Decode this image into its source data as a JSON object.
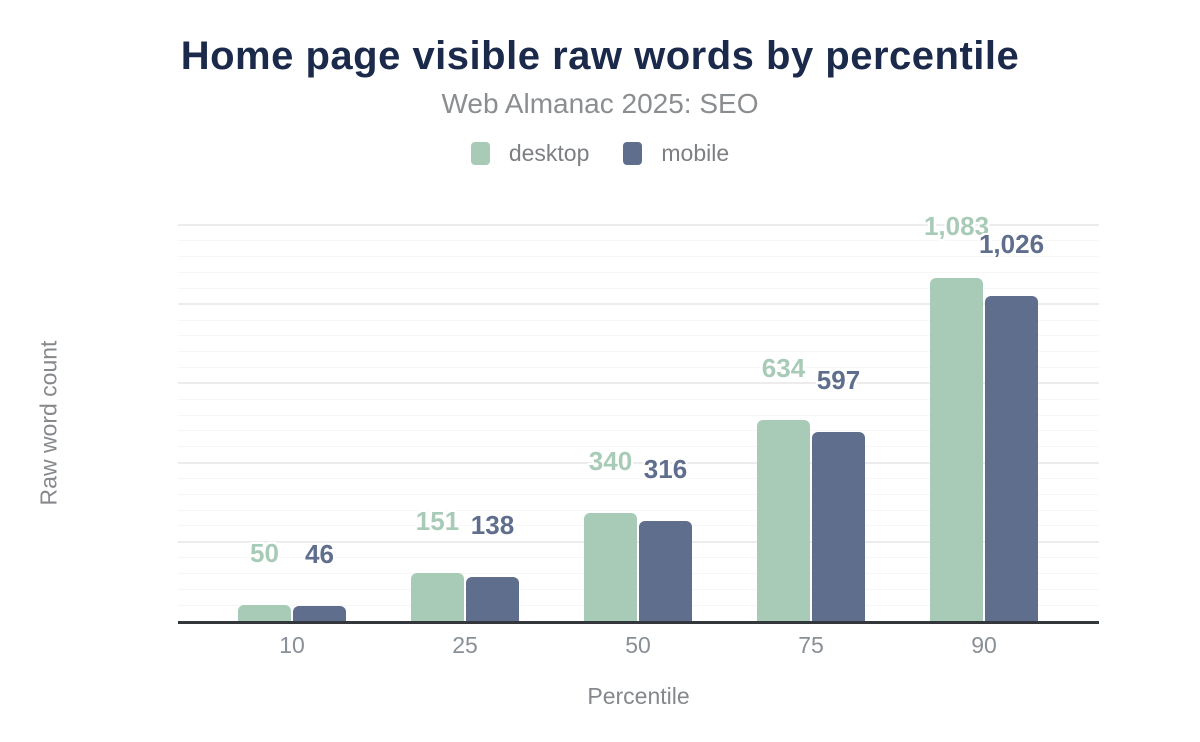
{
  "title": "Home page visible raw words by percentile",
  "subtitle": "Web Almanac 2025: SEO",
  "legend": {
    "items": [
      {
        "label": "desktop",
        "color": "#a8cbb7"
      },
      {
        "label": "mobile",
        "color": "#5f6e8c"
      }
    ]
  },
  "colors": {
    "desktop": "#a8cbb7",
    "mobile": "#5f6e8c",
    "title": "#1b2a4a",
    "axis_line": "#33363a",
    "tick_text": "#898f96"
  },
  "chart_data": {
    "type": "bar",
    "title": "Home page visible raw words by percentile",
    "subtitle": "Web Almanac 2025: SEO",
    "categories": [
      "10",
      "25",
      "50",
      "75",
      "90"
    ],
    "series": [
      {
        "name": "desktop",
        "color": "#a8cbb7",
        "values": [
          50,
          151,
          340,
          634,
          1083
        ],
        "labels": [
          "50",
          "151",
          "340",
          "634",
          "1,083"
        ]
      },
      {
        "name": "mobile",
        "color": "#5f6e8c",
        "values": [
          46,
          138,
          316,
          597,
          1026
        ],
        "labels": [
          "46",
          "138",
          "316",
          "597",
          "1,026"
        ]
      }
    ],
    "xlabel": "Percentile",
    "ylabel": "Raw word count",
    "ylim": [
      0,
      1250
    ],
    "ytick_step": 250,
    "yminor_step": 50,
    "yticks": [
      "0",
      "250",
      "500",
      "750",
      "1,000",
      "1,250"
    ],
    "grid": "on",
    "legend_position": "top",
    "bar_label_position": "above"
  }
}
